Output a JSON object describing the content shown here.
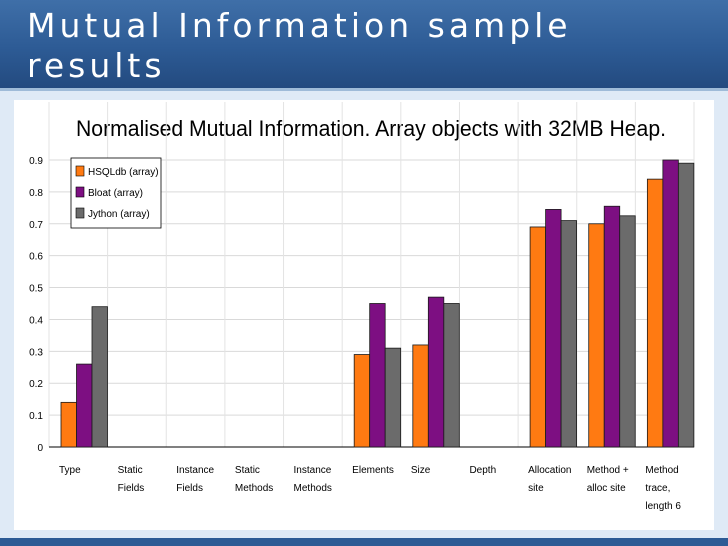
{
  "slide": {
    "title": "Mutual Information sample results",
    "colors": {
      "title_bar": "#2d5b95",
      "background": "#dfeaf6"
    }
  },
  "chart_data": {
    "type": "bar",
    "title": "Normalised Mutual Information. Array objects with 32MB Heap.",
    "xlabel": "",
    "ylabel": "",
    "ylim": [
      0,
      0.9
    ],
    "yticks": [
      "0",
      "0.1",
      "0.2",
      "0.3",
      "0.4",
      "0.5",
      "0.6",
      "0.7",
      "0.8",
      "0.9"
    ],
    "grid": true,
    "legend_position": "top-left",
    "categories": [
      [
        "Type"
      ],
      [
        "Static",
        "Fields"
      ],
      [
        "Instance",
        "Fields"
      ],
      [
        "Static",
        "Methods"
      ],
      [
        "Instance",
        "Methods"
      ],
      [
        "Elements"
      ],
      [
        "Size"
      ],
      [
        "Depth"
      ],
      [
        "Allocation",
        "site"
      ],
      [
        "Method +",
        "alloc site"
      ],
      [
        "Method",
        "trace,",
        "length 6"
      ]
    ],
    "series": [
      {
        "name": "HSQLdb (array)",
        "color": "#ff7a12",
        "values": [
          0.14,
          0,
          0,
          0,
          0,
          0.29,
          0.32,
          0,
          0.69,
          0.7,
          0.84
        ]
      },
      {
        "name": "Bloat (array)",
        "color": "#7d0f82",
        "values": [
          0.26,
          0,
          0,
          0,
          0,
          0.45,
          0.47,
          0,
          0.745,
          0.755,
          0.9
        ]
      },
      {
        "name": "Jython (array)",
        "color": "#6b6b6b",
        "values": [
          0.44,
          0,
          0,
          0,
          0,
          0.31,
          0.45,
          0,
          0.71,
          0.725,
          0.89
        ]
      }
    ]
  }
}
